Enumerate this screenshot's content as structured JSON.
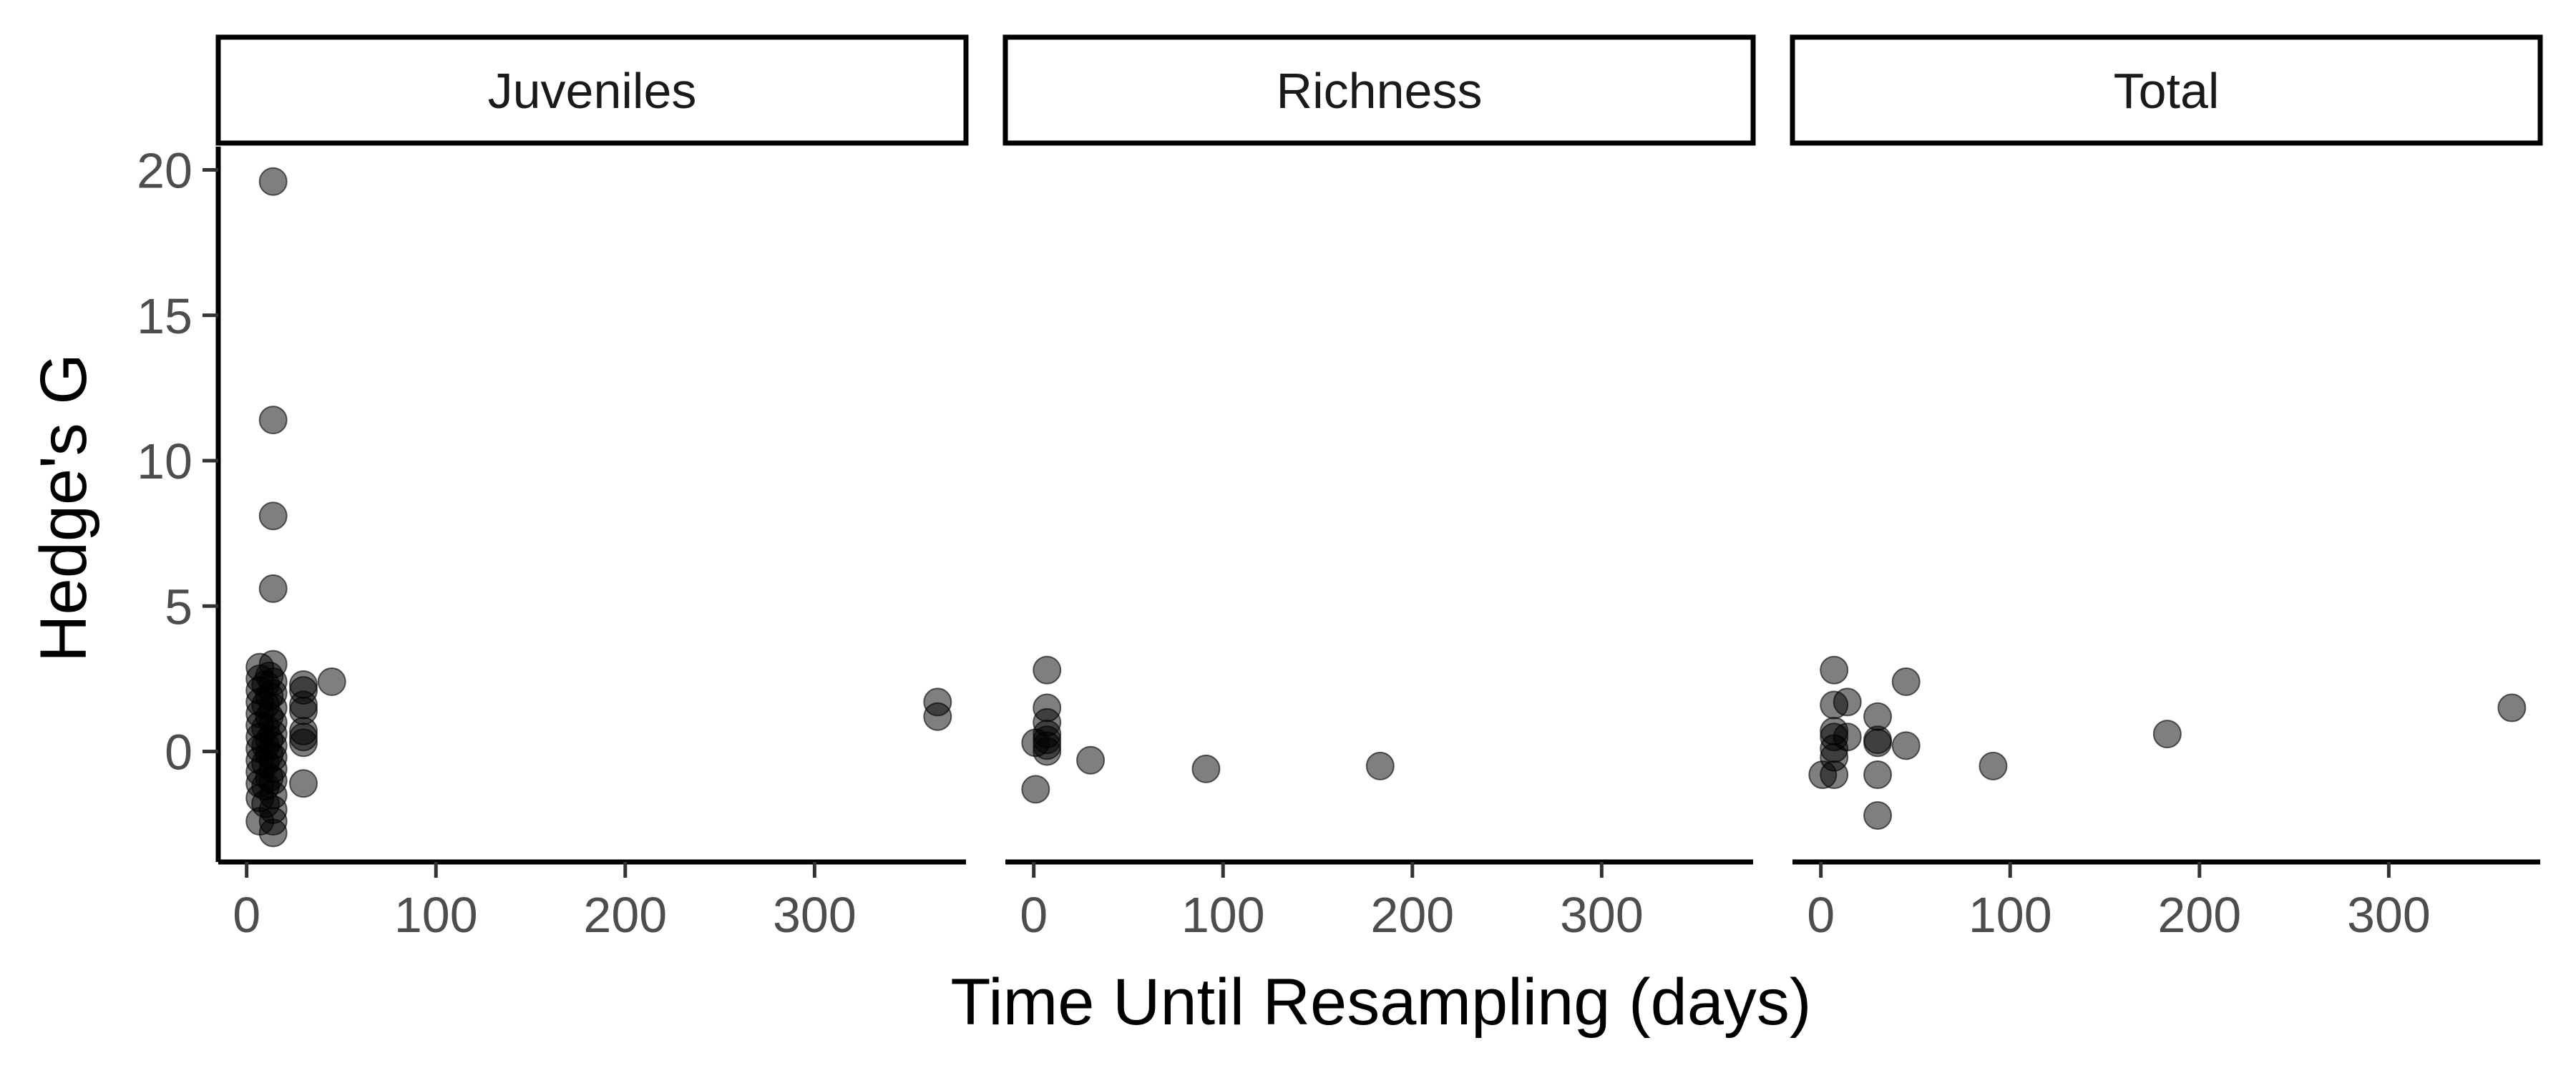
{
  "chart_data": {
    "type": "scatter",
    "xlabel": "Time Until Resampling (days)",
    "ylabel": "Hedge's G",
    "xlim": [
      -15,
      380
    ],
    "ylim": [
      -3.8,
      20.8
    ],
    "x_ticks": [
      0,
      100,
      200,
      300
    ],
    "y_ticks": [
      0,
      5,
      10,
      15,
      20
    ],
    "point_color": "#000000",
    "point_opacity": 0.5,
    "grid": false,
    "panels": [
      {
        "name": "Juveniles",
        "points": [
          [
            14,
            19.6
          ],
          [
            14,
            11.4
          ],
          [
            14,
            8.1
          ],
          [
            14,
            5.6
          ],
          [
            14,
            3.0
          ],
          [
            14,
            2.4
          ],
          [
            14,
            2.0
          ],
          [
            14,
            1.5
          ],
          [
            14,
            1.0
          ],
          [
            14,
            0.6
          ],
          [
            14,
            0.2
          ],
          [
            14,
            -0.2
          ],
          [
            14,
            -0.6
          ],
          [
            14,
            -1.0
          ],
          [
            14,
            -1.5
          ],
          [
            14,
            -2.0
          ],
          [
            14,
            -2.4
          ],
          [
            14,
            -2.8
          ],
          [
            7,
            2.9
          ],
          [
            7,
            2.5
          ],
          [
            7,
            2.1
          ],
          [
            7,
            1.7
          ],
          [
            7,
            1.3
          ],
          [
            7,
            0.9
          ],
          [
            7,
            0.5
          ],
          [
            7,
            0.1
          ],
          [
            7,
            -0.3
          ],
          [
            7,
            -0.7
          ],
          [
            7,
            -1.1
          ],
          [
            7,
            -1.6
          ],
          [
            7,
            -2.4
          ],
          [
            10,
            2.3
          ],
          [
            10,
            1.6
          ],
          [
            10,
            0.8
          ],
          [
            10,
            0.2
          ],
          [
            10,
            -0.4
          ],
          [
            10,
            -1.2
          ],
          [
            10,
            -1.8
          ],
          [
            12,
            2.6
          ],
          [
            12,
            1.9
          ],
          [
            12,
            1.2
          ],
          [
            12,
            0.4
          ],
          [
            12,
            -0.1
          ],
          [
            12,
            -0.9
          ],
          [
            30,
            2.3
          ],
          [
            30,
            2.1
          ],
          [
            30,
            1.6
          ],
          [
            30,
            1.4
          ],
          [
            30,
            0.7
          ],
          [
            30,
            0.5
          ],
          [
            30,
            0.3
          ],
          [
            30,
            -1.1
          ],
          [
            45,
            2.4
          ],
          [
            365,
            1.7
          ],
          [
            365,
            1.2
          ]
        ]
      },
      {
        "name": "Richness",
        "points": [
          [
            1,
            0.3
          ],
          [
            1,
            -1.3
          ],
          [
            7,
            2.8
          ],
          [
            7,
            1.5
          ],
          [
            7,
            1.0
          ],
          [
            7,
            0.6
          ],
          [
            7,
            0.4
          ],
          [
            7,
            0.2
          ],
          [
            7,
            0.0
          ],
          [
            30,
            -0.3
          ],
          [
            91,
            -0.6
          ],
          [
            183,
            -0.5
          ]
        ]
      },
      {
        "name": "Total",
        "points": [
          [
            1,
            -0.8
          ],
          [
            7,
            2.8
          ],
          [
            7,
            1.6
          ],
          [
            7,
            0.7
          ],
          [
            7,
            0.5
          ],
          [
            7,
            0.1
          ],
          [
            7,
            -0.2
          ],
          [
            7,
            -0.8
          ],
          [
            14,
            1.7
          ],
          [
            14,
            0.5
          ],
          [
            30,
            1.2
          ],
          [
            30,
            0.4
          ],
          [
            30,
            0.3
          ],
          [
            30,
            -0.8
          ],
          [
            30,
            -2.2
          ],
          [
            45,
            2.4
          ],
          [
            45,
            0.2
          ],
          [
            91,
            -0.5
          ],
          [
            183,
            0.6
          ],
          [
            365,
            1.5
          ]
        ]
      }
    ]
  }
}
